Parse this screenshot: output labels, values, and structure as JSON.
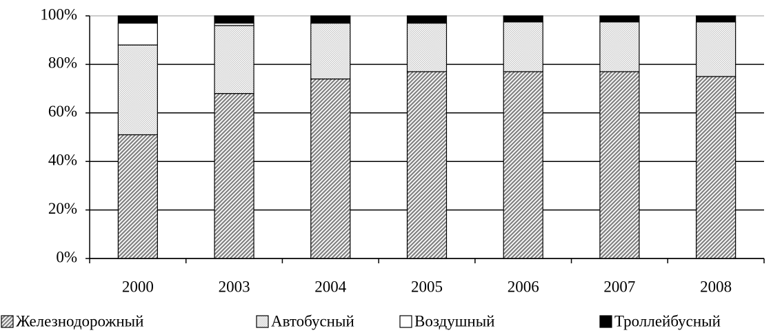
{
  "chart_data": {
    "type": "stacked_bar",
    "categories": [
      "2000",
      "2003",
      "2004",
      "2005",
      "2006",
      "2007",
      "2008"
    ],
    "series": [
      {
        "name": "Железнодорожный",
        "color": "#7f7f7f",
        "values": [
          51,
          68,
          74,
          77,
          77,
          77,
          75
        ]
      },
      {
        "name": "Автобусный",
        "color": "#c8c8c8",
        "values": [
          37,
          28,
          23,
          20,
          20.5,
          20.5,
          22.5
        ]
      },
      {
        "name": "Воздушный",
        "color": "#ffffff",
        "values": [
          9,
          1,
          0,
          0,
          0,
          0,
          0
        ]
      },
      {
        "name": "Троллейбусный",
        "color": "#000000",
        "values": [
          3,
          3,
          3,
          3,
          2.5,
          2.5,
          2.5
        ]
      }
    ],
    "ylim": [
      0,
      100
    ],
    "yticks": [
      {
        "value": 0,
        "label": "0%"
      },
      {
        "value": 20,
        "label": "20%"
      },
      {
        "value": 40,
        "label": "40%"
      },
      {
        "value": 60,
        "label": "60%"
      },
      {
        "value": 80,
        "label": "80%"
      },
      {
        "value": 100,
        "label": "100%"
      }
    ],
    "grid": true,
    "legend": "bottom"
  }
}
